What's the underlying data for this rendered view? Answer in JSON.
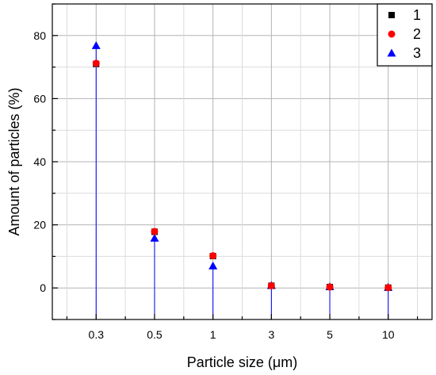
{
  "chart_data": {
    "type": "scatter",
    "categories": [
      "0.3",
      "0.5",
      "1",
      "3",
      "5",
      "10"
    ],
    "series": [
      {
        "name": "1",
        "values": [
          71.0,
          17.8,
          10.1,
          0.7,
          0.3,
          0.1
        ],
        "color": "#000000",
        "marker": "square"
      },
      {
        "name": "2",
        "values": [
          71.2,
          17.9,
          10.2,
          0.7,
          0.3,
          0.1
        ],
        "color": "#ff0000",
        "marker": "circle"
      },
      {
        "name": "3",
        "values": [
          76.8,
          15.8,
          7.0,
          0.8,
          0.4,
          0.2
        ],
        "color": "#0000ff",
        "marker": "triangle"
      }
    ],
    "stems": {
      "series": "3",
      "color": "#0000ff"
    },
    "xlabel": "Particle size (μm)",
    "ylabel": "Amount of particles (%)",
    "ylim": [
      -10,
      90
    ],
    "yticks": [
      0,
      20,
      40,
      60,
      80
    ],
    "grid": true,
    "legend": "top-right"
  }
}
